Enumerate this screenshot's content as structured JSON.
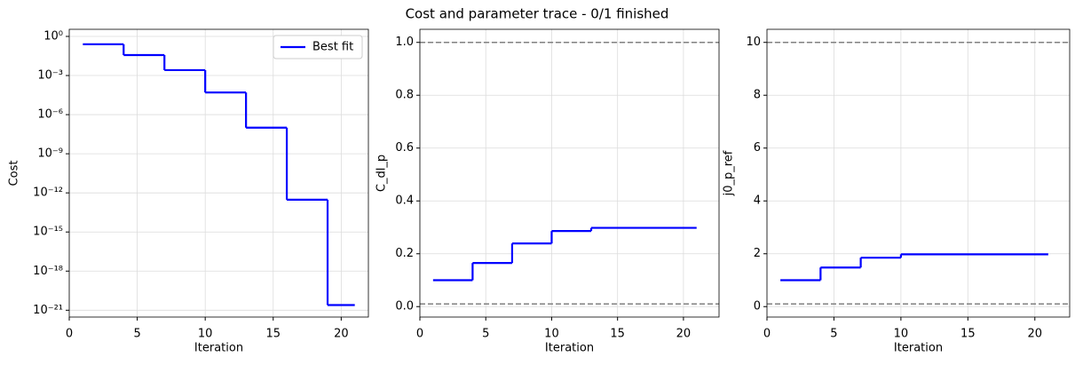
{
  "title": "Cost and parameter trace - 0/1 finished",
  "chart_data": [
    {
      "type": "line",
      "step": "post",
      "ylog": true,
      "grid": true,
      "legend": "upper right",
      "xlabel": "Iteration",
      "ylabel": "Cost",
      "x": [
        1,
        4,
        7,
        10,
        13,
        16,
        19,
        21
      ],
      "series": [
        {
          "name": "Best fit",
          "color": "#0000ff",
          "values": [
            0.25,
            0.037,
            0.0026,
            5e-05,
            1e-07,
            3e-13,
            2.5e-21,
            2.5e-21
          ]
        }
      ],
      "xlim": [
        0,
        22
      ],
      "xticks": [
        0,
        5,
        10,
        15,
        20
      ],
      "ylim": [
        3.5,
        3e-22
      ],
      "yticks": [
        {
          "value": 1,
          "label": "10⁰"
        },
        {
          "value": 0.001,
          "label": "10⁻³"
        },
        {
          "value": 1e-06,
          "label": "10⁻⁶"
        },
        {
          "value": 1e-09,
          "label": "10⁻⁹"
        },
        {
          "value": 1e-12,
          "label": "10⁻¹²"
        },
        {
          "value": 1e-15,
          "label": "10⁻¹⁵"
        },
        {
          "value": 1e-18,
          "label": "10⁻¹⁸"
        },
        {
          "value": 1e-21,
          "label": "10⁻²¹"
        }
      ]
    },
    {
      "type": "line",
      "step": "post",
      "grid": true,
      "xlabel": "Iteration",
      "ylabel": "C_dl_p",
      "x": [
        1,
        4,
        7,
        10,
        13,
        21
      ],
      "series": [
        {
          "color": "#0000ff",
          "values": [
            0.1,
            0.165,
            0.239,
            0.286,
            0.298,
            0.298
          ]
        }
      ],
      "hlines": [
        0.01,
        1.0
      ],
      "hline_color": "#808080",
      "xlim": [
        0,
        22.7
      ],
      "xticks": [
        0,
        5,
        10,
        15,
        20
      ],
      "ylim": [
        -0.0395,
        1.0495
      ],
      "yticks": [
        {
          "value": 0,
          "label": "0.0"
        },
        0.2,
        0.4,
        0.6,
        0.8,
        {
          "value": 1,
          "label": "1.0"
        }
      ]
    },
    {
      "type": "line",
      "step": "post",
      "grid": true,
      "xlabel": "Iteration",
      "ylabel": "j0_p_ref",
      "x": [
        1,
        4,
        7,
        10,
        21
      ],
      "series": [
        {
          "color": "#0000ff",
          "values": [
            1.0,
            1.48,
            1.85,
            1.98,
            1.98
          ]
        }
      ],
      "hlines": [
        0.1,
        10
      ],
      "hline_color": "#808080",
      "xlim": [
        0,
        22.6
      ],
      "xticks": [
        0,
        5,
        10,
        15,
        20
      ],
      "ylim": [
        -0.395,
        10.495
      ],
      "yticks": [
        0,
        2,
        4,
        6,
        8,
        10
      ]
    }
  ]
}
